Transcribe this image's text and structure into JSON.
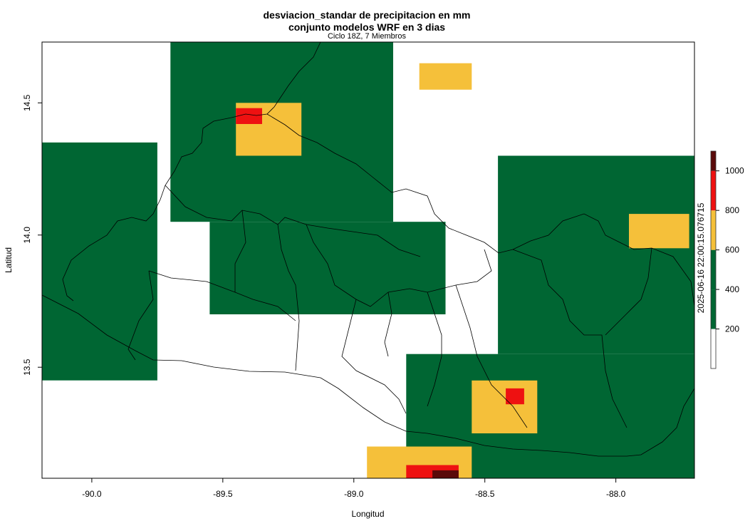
{
  "chart_data": {
    "type": "heatmap",
    "title": "desviacion_standar de precipitacion en mm",
    "title_line2": "conjunto modelos WRF en 3 dias",
    "subtitle": "Ciclo 18Z, 7 Miembros",
    "xlabel": "Longitud",
    "ylabel": "Latitud",
    "xlim": [
      -90.19,
      -87.7
    ],
    "ylim": [
      13.08,
      14.73
    ],
    "x_ticks": [
      -90.0,
      -89.5,
      -89.0,
      -88.5,
      -88.0
    ],
    "x_tick_labels": [
      "-90.0",
      "-89.5",
      "-89.0",
      "-88.5",
      "-88.0"
    ],
    "y_ticks": [
      13.5,
      14.0,
      14.5
    ],
    "y_tick_labels": [
      "13.5",
      "14.0",
      "14.5"
    ],
    "timestamp_label": "2025-06-16 22:00:15.076715",
    "colorbar": {
      "breaks": [
        0,
        200,
        400,
        600,
        800,
        1000,
        1100
      ],
      "tick_values": [
        200,
        400,
        600,
        800,
        1000
      ],
      "tick_labels": [
        "200",
        "400",
        "600",
        "800",
        "1000"
      ],
      "colors": [
        "#ffffff",
        "#006633",
        "#006633",
        "#f5c03a",
        "#ee1111",
        "#5a0a0a"
      ]
    },
    "regions": [
      {
        "level": "200-600",
        "color": "#006633",
        "lon": [
          -90.19,
          -89.75
        ],
        "lat": [
          13.45,
          14.35
        ]
      },
      {
        "level": "200-600",
        "color": "#006633",
        "lon": [
          -89.7,
          -88.85
        ],
        "lat": [
          14.05,
          14.73
        ]
      },
      {
        "level": "200-600",
        "color": "#006633",
        "lon": [
          -89.55,
          -88.65
        ],
        "lat": [
          13.7,
          14.05
        ]
      },
      {
        "level": "200-600",
        "color": "#006633",
        "lon": [
          -88.45,
          -87.7
        ],
        "lat": [
          13.55,
          14.3
        ]
      },
      {
        "level": "200-600",
        "color": "#006633",
        "lon": [
          -88.8,
          -87.7
        ],
        "lat": [
          13.08,
          13.55
        ]
      },
      {
        "level": "600-800",
        "color": "#f5c03a",
        "lon": [
          -89.45,
          -89.2
        ],
        "lat": [
          14.3,
          14.5
        ]
      },
      {
        "level": "600-800",
        "color": "#f5c03a",
        "lon": [
          -88.75,
          -88.55
        ],
        "lat": [
          14.55,
          14.65
        ]
      },
      {
        "level": "600-800",
        "color": "#f5c03a",
        "lon": [
          -88.55,
          -88.3
        ],
        "lat": [
          13.25,
          13.45
        ]
      },
      {
        "level": "600-800",
        "color": "#f5c03a",
        "lon": [
          -87.95,
          -87.72
        ],
        "lat": [
          13.95,
          14.08
        ]
      },
      {
        "level": "600-800",
        "color": "#f5c03a",
        "lon": [
          -88.95,
          -88.55
        ],
        "lat": [
          13.08,
          13.2
        ]
      },
      {
        "level": "800-1000",
        "color": "#ee1111",
        "lon": [
          -89.45,
          -89.35
        ],
        "lat": [
          14.42,
          14.48
        ]
      },
      {
        "level": "800-1000",
        "color": "#ee1111",
        "lon": [
          -88.42,
          -88.35
        ],
        "lat": [
          13.36,
          13.42
        ]
      },
      {
        "level": "800-1000",
        "color": "#ee1111",
        "lon": [
          -88.8,
          -88.6
        ],
        "lat": [
          13.08,
          13.13
        ]
      },
      {
        "level": "1000+",
        "color": "#5a0a0a",
        "lon": [
          -88.7,
          -88.6
        ],
        "lat": [
          13.08,
          13.11
        ]
      }
    ]
  }
}
